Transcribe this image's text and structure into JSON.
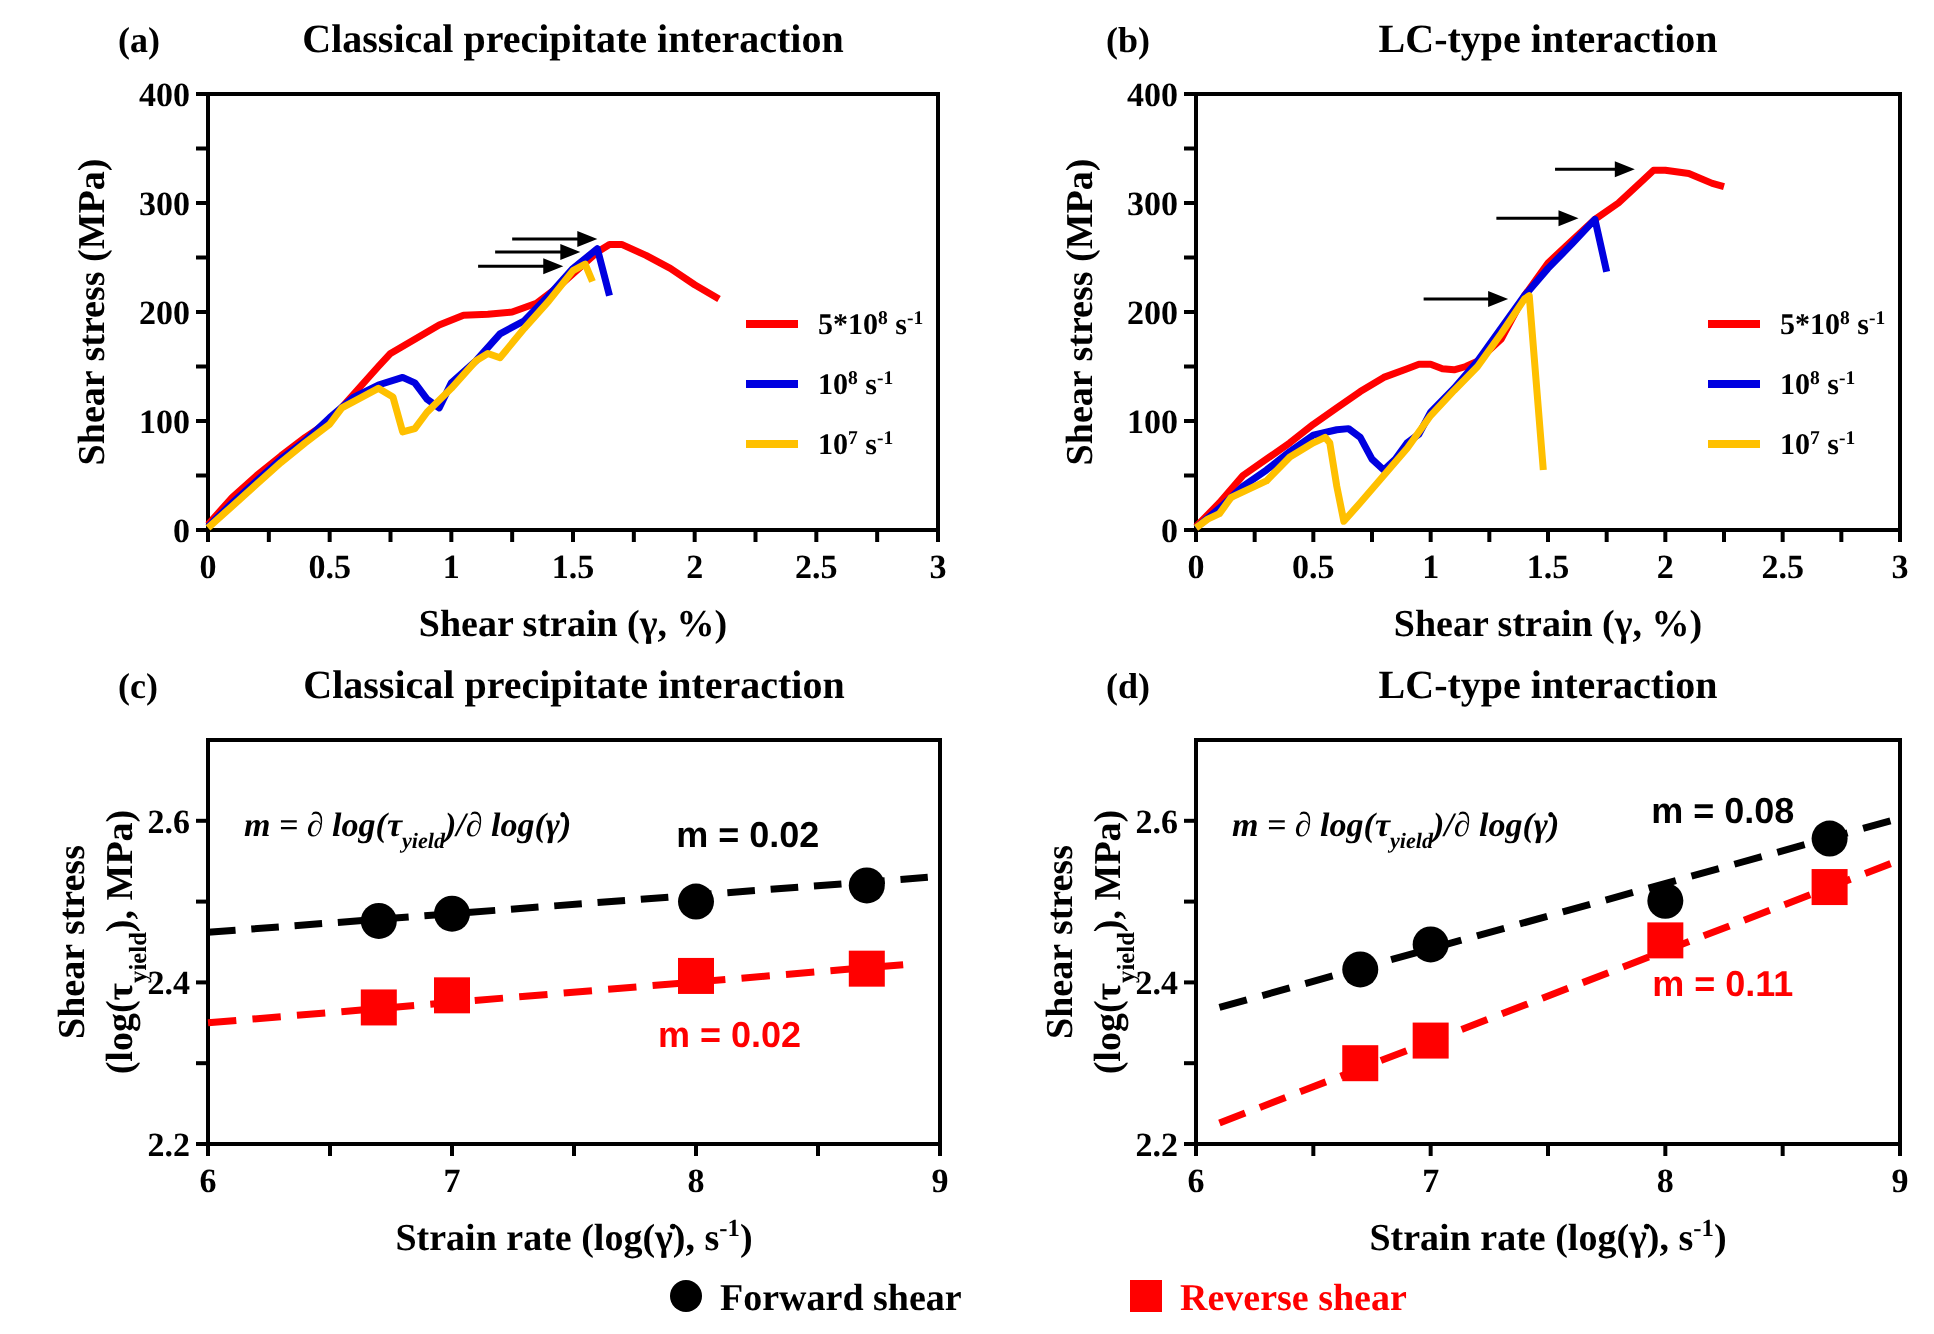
{
  "chart_data": [
    {
      "type": "line",
      "title": "Classical precipitate interaction",
      "annotations": [
        "(a)"
      ],
      "xlabel": "Shear strain (γ, %)",
      "ylabel": "Shear stress (MPa)",
      "xlim": [
        0,
        3
      ],
      "ylim": [
        0,
        400
      ],
      "xticks": [
        0,
        {
          "value": 0.25,
          "label": null
        },
        0.5,
        {
          "value": 0.75,
          "label": null
        },
        1,
        {
          "value": 1.25,
          "label": null
        },
        1.5,
        {
          "value": 1.75,
          "label": null
        },
        2,
        {
          "value": 2.25,
          "label": null
        },
        2.5,
        {
          "value": 2.75,
          "label": null
        },
        3
      ],
      "yticks": [
        0,
        {
          "value": 50,
          "label": null
        },
        100,
        {
          "value": 150,
          "label": null
        },
        200,
        {
          "value": 250,
          "label": null
        },
        300,
        {
          "value": 350,
          "label": null
        },
        400
      ],
      "legend": "right",
      "series": [
        {
          "name": "5*10$^{8}$ s$^{-1}$",
          "color": "#ff0000",
          "x": [
            0,
            0.1,
            0.2,
            0.3,
            0.4,
            0.5,
            0.6,
            0.7,
            0.75,
            0.85,
            0.95,
            1.05,
            1.15,
            1.25,
            1.35,
            1.45,
            1.55,
            1.6,
            1.65,
            1.7,
            1.8,
            1.9,
            2.0,
            2.1
          ],
          "values": [
            5,
            30,
            50,
            68,
            85,
            100,
            125,
            150,
            162,
            175,
            188,
            197,
            198,
            200,
            208,
            225,
            245,
            255,
            262,
            262,
            252,
            240,
            225,
            212
          ]
        },
        {
          "name": "10$^{8}$ s$^{-1}$",
          "color": "#0000e0",
          "x": [
            0,
            0.1,
            0.2,
            0.3,
            0.4,
            0.5,
            0.6,
            0.7,
            0.8,
            0.85,
            0.9,
            0.95,
            1.0,
            1.1,
            1.2,
            1.3,
            1.4,
            1.5,
            1.6,
            1.65
          ],
          "values": [
            3,
            25,
            45,
            65,
            82,
            103,
            122,
            133,
            140,
            135,
            120,
            112,
            135,
            155,
            180,
            192,
            215,
            240,
            258,
            215
          ]
        },
        {
          "name": "10$^{7}$ s$^{-1}$",
          "color": "#ffc000",
          "x": [
            0,
            0.1,
            0.2,
            0.3,
            0.4,
            0.5,
            0.55,
            0.7,
            0.76,
            0.8,
            0.85,
            0.9,
            1.0,
            1.1,
            1.15,
            1.2,
            1.3,
            1.4,
            1.5,
            1.55,
            1.58
          ],
          "values": [
            2,
            22,
            42,
            62,
            80,
            97,
            112,
            130,
            122,
            90,
            93,
            108,
            130,
            155,
            162,
            158,
            185,
            210,
            238,
            244,
            228
          ]
        }
      ]
    },
    {
      "type": "line",
      "title": "LC-type interaction",
      "annotations": [
        "(b)"
      ],
      "xlabel": "Shear strain (γ, %)",
      "ylabel": "Shear stress (MPa)",
      "xlim": [
        0,
        3
      ],
      "ylim": [
        0,
        400
      ],
      "xticks": [
        0,
        {
          "value": 0.25,
          "label": null
        },
        0.5,
        {
          "value": 0.75,
          "label": null
        },
        1,
        {
          "value": 1.25,
          "label": null
        },
        1.5,
        {
          "value": 1.75,
          "label": null
        },
        2,
        {
          "value": 2.25,
          "label": null
        },
        2.5,
        {
          "value": 2.75,
          "label": null
        },
        3
      ],
      "yticks": [
        0,
        {
          "value": 50,
          "label": null
        },
        100,
        {
          "value": 150,
          "label": null
        },
        200,
        {
          "value": 250,
          "label": null
        },
        300,
        {
          "value": 350,
          "label": null
        },
        400
      ],
      "legend": "right",
      "series": [
        {
          "name": "5*10$^{8}$ s$^{-1}$",
          "color": "#ff0000",
          "x": [
            0,
            0.1,
            0.2,
            0.3,
            0.4,
            0.5,
            0.6,
            0.7,
            0.8,
            0.9,
            0.95,
            1.0,
            1.05,
            1.1,
            1.15,
            1.2,
            1.3,
            1.4,
            1.5,
            1.6,
            1.7,
            1.8,
            1.9,
            1.95,
            2.0,
            2.1,
            2.2,
            2.25
          ],
          "values": [
            3,
            25,
            50,
            65,
            80,
            97,
            112,
            127,
            140,
            148,
            152,
            152,
            148,
            147,
            150,
            155,
            175,
            215,
            245,
            265,
            285,
            300,
            320,
            330,
            330,
            327,
            318,
            315
          ]
        },
        {
          "name": "10$^{8}$ s$^{-1}$",
          "color": "#0000e0",
          "x": [
            0,
            0.1,
            0.2,
            0.3,
            0.4,
            0.5,
            0.6,
            0.65,
            0.7,
            0.75,
            0.8,
            0.85,
            0.9,
            0.95,
            1.0,
            1.1,
            1.2,
            1.3,
            1.4,
            1.5,
            1.6,
            1.7,
            1.75
          ],
          "values": [
            2,
            20,
            40,
            55,
            72,
            87,
            92,
            93,
            85,
            65,
            55,
            65,
            80,
            88,
            108,
            130,
            155,
            185,
            215,
            240,
            262,
            285,
            237
          ]
        },
        {
          "name": "10$^{7}$ s$^{-1}$",
          "color": "#ffc000",
          "x": [
            0,
            0.05,
            0.1,
            0.15,
            0.2,
            0.3,
            0.4,
            0.5,
            0.55,
            0.57,
            0.6,
            0.63,
            0.7,
            0.8,
            0.9,
            1.0,
            1.1,
            1.2,
            1.3,
            1.4,
            1.42,
            1.48
          ],
          "values": [
            2,
            10,
            15,
            30,
            35,
            45,
            67,
            80,
            85,
            80,
            40,
            8,
            25,
            50,
            75,
            105,
            128,
            150,
            180,
            212,
            215,
            55
          ]
        }
      ]
    },
    {
      "type": "scatter",
      "title": "Classical precipitate interaction",
      "annotations": [
        "(c)",
        "m = ∂ log(τ$_{yield}$)/∂ log(γ̇)",
        "m = 0.02",
        "m = 0.02"
      ],
      "xlabel": "Strain rate (log(γ̇), s$^{-1}$)",
      "ylabel": "Shear stress (log(τ$_{yield}$), MPa)",
      "xlim": [
        6,
        9
      ],
      "ylim": [
        2.2,
        2.7
      ],
      "xticks": [
        6,
        {
          "value": 6.5,
          "label": null
        },
        7,
        {
          "value": 7.5,
          "label": null
        },
        8,
        {
          "value": 8.5,
          "label": null
        },
        9
      ],
      "yticks": [
        2.2,
        {
          "value": 2.3,
          "label": null
        },
        2.4,
        {
          "value": 2.5,
          "label": null
        },
        2.6
      ],
      "legend": "bottom",
      "series": [
        {
          "name": "Forward shear",
          "marker": "circle",
          "color": "#000000",
          "x": [
            6.7,
            7,
            8,
            8.7
          ],
          "values": [
            2.476,
            2.485,
            2.5,
            2.52
          ]
        },
        {
          "name": "Reverse shear",
          "marker": "square",
          "color": "#ff0000",
          "x": [
            6.7,
            7,
            8,
            8.7
          ],
          "values": [
            2.369,
            2.384,
            2.408,
            2.417
          ]
        },
        {
          "type": "line",
          "line_style": "dashed",
          "color": "#000000",
          "x": [
            6,
            8.95
          ],
          "values": [
            2.462,
            2.53
          ]
        },
        {
          "type": "line",
          "line_style": "dashed",
          "color": "#ff0000",
          "x": [
            6,
            8.85
          ],
          "values": [
            2.35,
            2.422
          ]
        }
      ]
    },
    {
      "type": "scatter",
      "title": "LC-type interaction",
      "annotations": [
        "(d)",
        "m = ∂ log(τ$_{yield}$)/∂ log(γ̇)",
        "m = 0.08",
        "m = 0.11"
      ],
      "xlabel": "Strain rate (log(γ̇), s$^{-1}$)",
      "ylabel": "Shear stress (log(τ$_{yield}$), MPa)",
      "xlim": [
        6,
        9
      ],
      "ylim": [
        2.2,
        2.7
      ],
      "xticks": [
        6,
        {
          "value": 6.5,
          "label": null
        },
        7,
        {
          "value": 7.5,
          "label": null
        },
        8,
        {
          "value": 8.5,
          "label": null
        },
        9
      ],
      "yticks": [
        2.2,
        {
          "value": 2.3,
          "label": null
        },
        2.4,
        {
          "value": 2.5,
          "label": null
        },
        2.6
      ],
      "series": [
        {
          "marker": "circle",
          "color": "#000000",
          "x": [
            6.7,
            7,
            8,
            8.7
          ],
          "values": [
            2.416,
            2.447,
            2.501,
            2.578
          ]
        },
        {
          "marker": "square",
          "color": "#ff0000",
          "x": [
            6.7,
            7,
            8,
            8.7
          ],
          "values": [
            2.3,
            2.328,
            2.452,
            2.518
          ]
        },
        {
          "type": "line",
          "line_style": "dashed",
          "color": "#000000",
          "x": [
            6.1,
            8.96
          ],
          "values": [
            2.369,
            2.6
          ]
        },
        {
          "type": "line",
          "line_style": "dashed",
          "color": "#ff0000",
          "x": [
            6.1,
            8.96
          ],
          "values": [
            2.226,
            2.547
          ]
        }
      ]
    }
  ]
}
